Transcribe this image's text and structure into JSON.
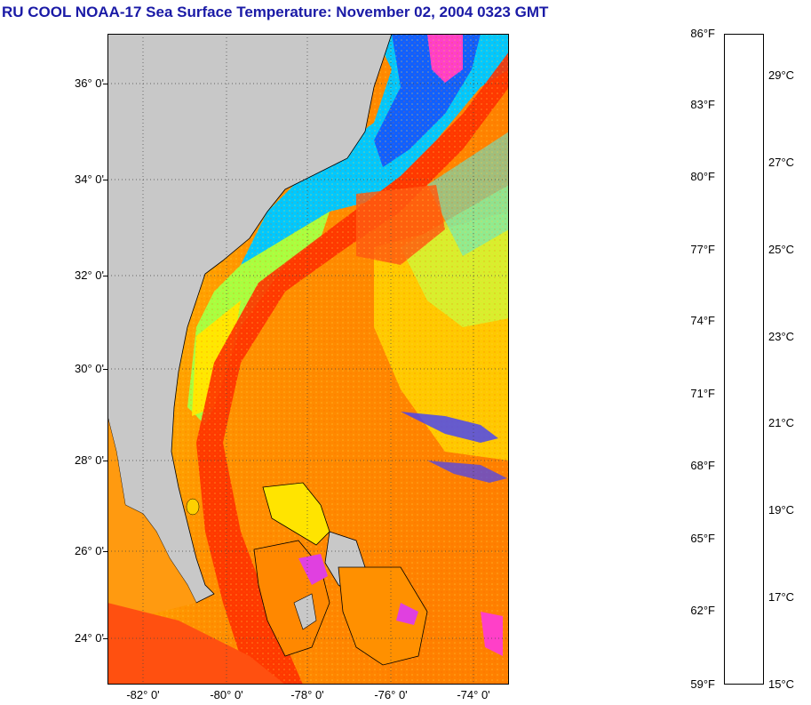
{
  "title": "RU COOL  NOAA-17  Sea Surface Temperature:  November 02, 2004 0323 GMT",
  "map": {
    "latitude_labels": [
      "36° 0'",
      "34° 0'",
      "32° 0'",
      "30° 0'",
      "28° 0'",
      "26° 0'",
      "24° 0'"
    ],
    "longitude_labels": [
      "-82° 0'",
      "-80° 0'",
      "-78° 0'",
      "-76° 0'",
      "-74° 0'"
    ],
    "land_color": "#c8c8c8",
    "ocean_dominant_color": "#ff8c00",
    "gulf_stream_color": "#ff2a00"
  },
  "colorbar": {
    "fahrenheit_labels": [
      "86°F",
      "83°F",
      "80°F",
      "77°F",
      "74°F",
      "71°F",
      "68°F",
      "65°F",
      "62°F",
      "59°F"
    ],
    "celsius_labels": [
      "29°C",
      "27°C",
      "25°C",
      "23°C",
      "21°C",
      "19°C",
      "17°C",
      "15°C"
    ]
  }
}
